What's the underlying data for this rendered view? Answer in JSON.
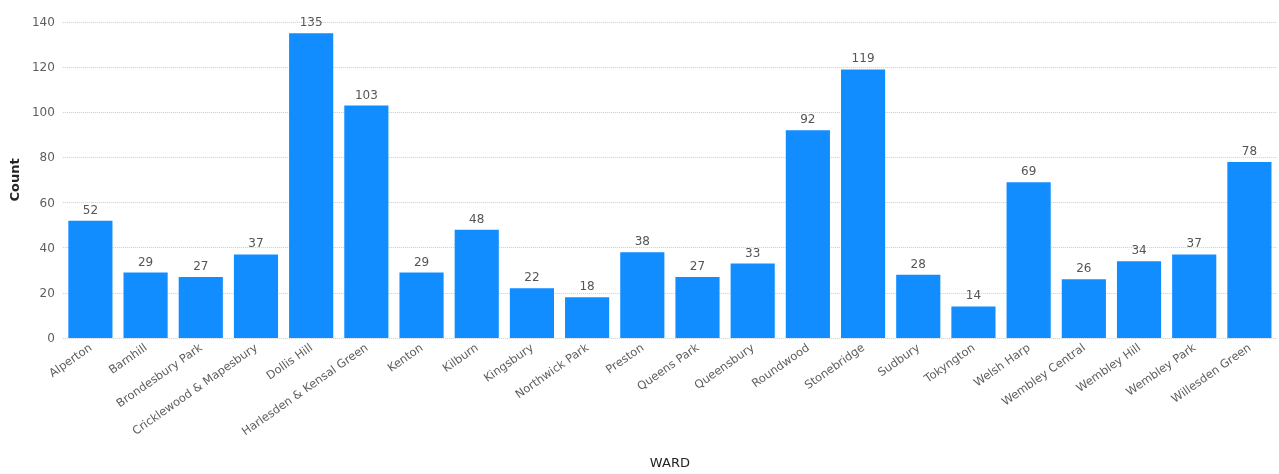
{
  "chart_data": {
    "type": "bar",
    "xlabel": "WARD",
    "ylabel": "Count",
    "categories": [
      "Alperton",
      "Barnhill",
      "Brondesbury Park",
      "Cricklewood & Mapesbury",
      "Dollis Hill",
      "Harlesden & Kensal Green",
      "Kenton",
      "Kilburn",
      "Kingsbury",
      "Northwick Park",
      "Preston",
      "Queens Park",
      "Queensbury",
      "Roundwood",
      "Stonebridge",
      "Sudbury",
      "Tokyngton",
      "Welsh Harp",
      "Wembley Central",
      "Wembley Hill",
      "Wembley Park",
      "Willesden Green"
    ],
    "values": [
      52,
      29,
      27,
      37,
      135,
      103,
      29,
      48,
      22,
      18,
      38,
      27,
      33,
      92,
      119,
      28,
      14,
      69,
      26,
      34,
      37,
      78
    ],
    "color": "#118dff",
    "ylim": [
      0,
      140
    ],
    "yticks": [
      0,
      20,
      40,
      60,
      80,
      100,
      120,
      140
    ],
    "grid": "y",
    "data_labels": true
  }
}
